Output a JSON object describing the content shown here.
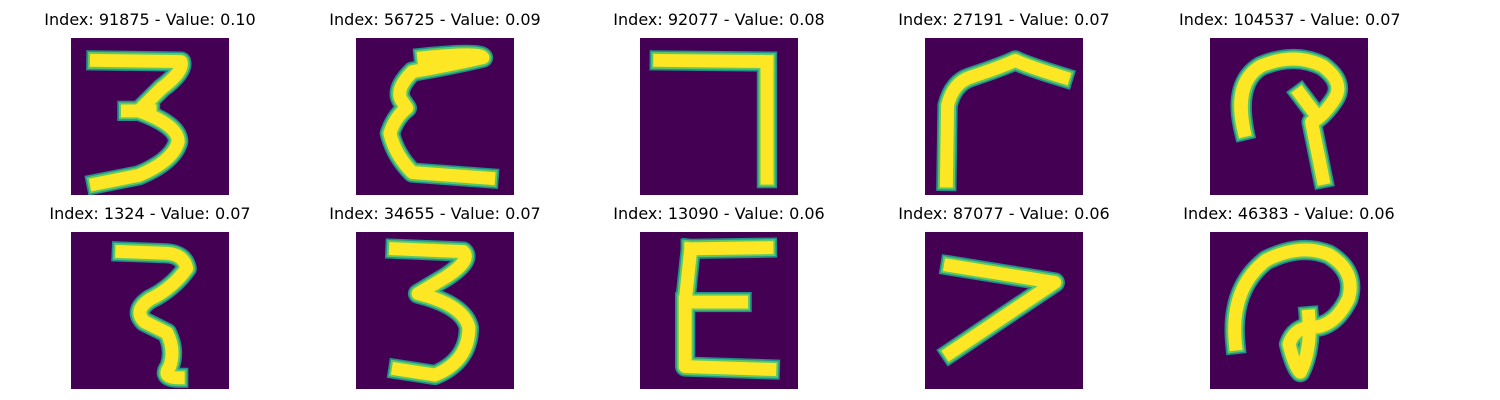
{
  "colors": {
    "background": "#440154",
    "stroke_core": "#fde725",
    "stroke_edge": "#21918c",
    "stroke_mid": "#5ec962",
    "title_text": "#000000"
  },
  "grid": {
    "rows": 2,
    "cols": 5
  },
  "panels": [
    {
      "title": "Index: 91875 - Value: 0.10",
      "glyph": "three-flat-top"
    },
    {
      "title": "Index: 56725 - Value: 0.09",
      "glyph": "epsilon"
    },
    {
      "title": "Index: 92077 - Value: 0.08",
      "glyph": "seven-right-angle"
    },
    {
      "title": "Index: 27191 - Value: 0.07",
      "glyph": "hook-left"
    },
    {
      "title": "Index: 104537 - Value: 0.07",
      "glyph": "loop-nine"
    },
    {
      "title": "Index: 1324 - Value: 0.07",
      "glyph": "z-curve"
    },
    {
      "title": "Index: 34655 - Value: 0.07",
      "glyph": "three-round"
    },
    {
      "title": "Index: 13090 - Value: 0.06",
      "glyph": "e-block"
    },
    {
      "title": "Index: 87077 - Value: 0.06",
      "glyph": "angle-left"
    },
    {
      "title": "Index: 46383 - Value: 0.06",
      "glyph": "loop-at"
    }
  ]
}
